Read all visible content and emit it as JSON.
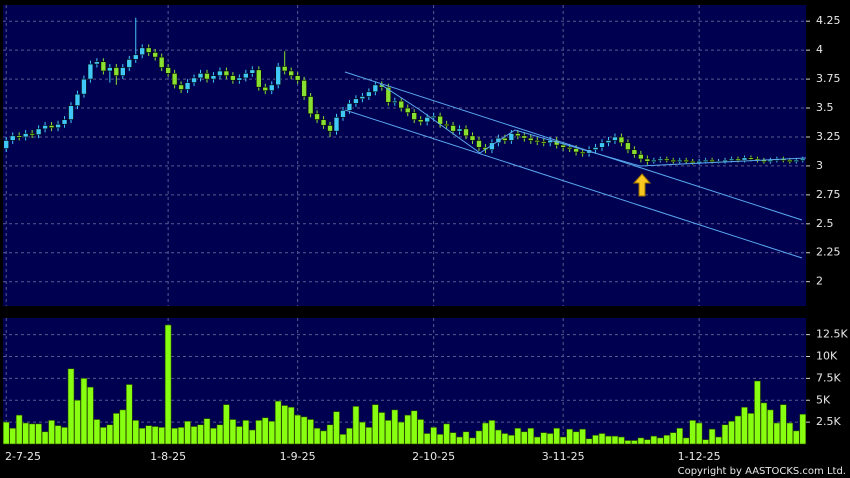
{
  "chart_data": [
    {
      "type": "candlestick",
      "up_color": "#40c8f8",
      "down_color": "#88e030",
      "background": "#000050",
      "ylim": [
        1.79,
        4.39
      ],
      "yticks": [
        2,
        2.25,
        2.5,
        2.75,
        3,
        3.25,
        3.5,
        3.75,
        4,
        4.25
      ],
      "grid": true,
      "open": [
        3.15,
        3.22,
        3.26,
        3.25,
        3.28,
        3.27,
        3.32,
        3.35,
        3.33,
        3.36,
        3.4,
        3.52,
        3.62,
        3.75,
        3.88,
        3.9,
        3.82,
        3.85,
        3.78,
        3.85,
        3.92,
        3.96,
        4.02,
        3.98,
        3.94,
        3.85,
        3.8,
        3.7,
        3.66,
        3.72,
        3.76,
        3.8,
        3.75,
        3.78,
        3.82,
        3.78,
        3.74,
        3.76,
        3.8,
        3.83,
        3.68,
        3.65,
        3.7,
        3.86,
        3.82,
        3.78,
        3.74,
        3.6,
        3.45,
        3.4,
        3.35,
        3.3,
        3.42,
        3.48,
        3.54,
        3.58,
        3.6,
        3.64,
        3.7,
        3.68,
        3.55,
        3.56,
        3.5,
        3.46,
        3.4,
        3.38,
        3.42,
        3.43,
        3.36,
        3.35,
        3.3,
        3.32,
        3.26,
        3.22,
        3.16,
        3.14,
        3.2,
        3.24,
        3.22,
        3.28,
        3.26,
        3.24,
        3.22,
        3.21,
        3.2,
        3.22,
        3.18,
        3.16,
        3.15,
        3.12,
        3.11,
        3.14,
        3.16,
        3.2,
        3.22,
        3.25,
        3.2,
        3.14,
        3.1,
        3.06,
        3.04,
        3.05,
        3.06,
        3.05,
        3.04,
        3.05,
        3.04,
        3.03,
        3.04,
        3.05,
        3.04,
        3.04,
        3.05,
        3.06,
        3.05,
        3.07,
        3.06,
        3.05,
        3.04,
        3.05,
        3.06,
        3.05,
        3.04,
        3.05
      ],
      "high": [
        3.25,
        3.29,
        3.29,
        3.31,
        3.31,
        3.35,
        3.38,
        3.38,
        3.39,
        3.43,
        3.55,
        3.65,
        3.78,
        3.91,
        3.93,
        3.93,
        3.88,
        3.88,
        3.88,
        3.95,
        4.28,
        4.05,
        4.05,
        4.01,
        3.97,
        3.88,
        3.83,
        3.73,
        3.75,
        3.79,
        3.83,
        3.83,
        3.81,
        3.85,
        3.85,
        3.81,
        3.79,
        3.83,
        3.86,
        3.86,
        3.71,
        3.73,
        3.89,
        3.99,
        3.85,
        3.81,
        3.77,
        3.63,
        3.48,
        3.43,
        3.38,
        3.45,
        3.51,
        3.57,
        3.61,
        3.63,
        3.67,
        3.73,
        3.73,
        3.71,
        3.59,
        3.59,
        3.53,
        3.49,
        3.43,
        3.45,
        3.46,
        3.46,
        3.39,
        3.38,
        3.35,
        3.35,
        3.29,
        3.25,
        3.19,
        3.23,
        3.27,
        3.27,
        3.31,
        3.31,
        3.29,
        3.27,
        3.25,
        3.24,
        3.25,
        3.25,
        3.21,
        3.19,
        3.18,
        3.15,
        3.17,
        3.19,
        3.23,
        3.25,
        3.28,
        3.28,
        3.23,
        3.17,
        3.13,
        3.09,
        3.07,
        3.08,
        3.08,
        3.07,
        3.07,
        3.07,
        3.06,
        3.06,
        3.07,
        3.07,
        3.06,
        3.07,
        3.08,
        3.08,
        3.09,
        3.09,
        3.08,
        3.07,
        3.07,
        3.08,
        3.08,
        3.07,
        3.07,
        3.08
      ],
      "low": [
        3.12,
        3.19,
        3.22,
        3.22,
        3.24,
        3.24,
        3.29,
        3.3,
        3.3,
        3.33,
        3.37,
        3.49,
        3.59,
        3.72,
        3.85,
        3.79,
        3.72,
        3.7,
        3.75,
        3.82,
        3.89,
        3.93,
        3.95,
        3.91,
        3.82,
        3.77,
        3.67,
        3.63,
        3.63,
        3.69,
        3.73,
        3.72,
        3.72,
        3.75,
        3.75,
        3.71,
        3.71,
        3.73,
        3.77,
        3.65,
        3.62,
        3.62,
        3.67,
        3.79,
        3.75,
        3.71,
        3.57,
        3.42,
        3.37,
        3.32,
        3.25,
        3.27,
        3.39,
        3.45,
        3.51,
        3.55,
        3.57,
        3.61,
        3.65,
        3.52,
        3.52,
        3.47,
        3.43,
        3.37,
        3.35,
        3.35,
        3.39,
        3.33,
        3.32,
        3.27,
        3.27,
        3.23,
        3.19,
        3.13,
        3.11,
        3.11,
        3.17,
        3.19,
        3.19,
        3.23,
        3.21,
        3.19,
        3.18,
        3.17,
        3.17,
        3.15,
        3.13,
        3.12,
        3.09,
        3.08,
        3.08,
        3.11,
        3.13,
        3.17,
        3.19,
        3.17,
        3.11,
        3.07,
        3.03,
        3.01,
        3.02,
        3.03,
        3.03,
        3.02,
        3.02,
        3.02,
        3.01,
        3.01,
        3.02,
        3.02,
        3.02,
        3.02,
        3.03,
        3.03,
        3.03,
        3.04,
        3.03,
        3.02,
        3.02,
        3.03,
        3.03,
        3.02,
        3.02,
        3.03
      ],
      "close": [
        3.22,
        3.26,
        3.25,
        3.28,
        3.27,
        3.32,
        3.35,
        3.33,
        3.36,
        3.4,
        3.52,
        3.62,
        3.75,
        3.88,
        3.9,
        3.82,
        3.85,
        3.78,
        3.85,
        3.92,
        3.96,
        4.02,
        3.98,
        3.94,
        3.85,
        3.8,
        3.7,
        3.66,
        3.72,
        3.76,
        3.8,
        3.75,
        3.78,
        3.82,
        3.78,
        3.74,
        3.76,
        3.8,
        3.83,
        3.68,
        3.65,
        3.7,
        3.86,
        3.82,
        3.78,
        3.74,
        3.6,
        3.45,
        3.4,
        3.35,
        3.3,
        3.42,
        3.48,
        3.54,
        3.58,
        3.6,
        3.64,
        3.7,
        3.68,
        3.55,
        3.56,
        3.5,
        3.46,
        3.4,
        3.38,
        3.42,
        3.43,
        3.36,
        3.35,
        3.3,
        3.32,
        3.26,
        3.22,
        3.16,
        3.14,
        3.2,
        3.24,
        3.22,
        3.28,
        3.26,
        3.24,
        3.22,
        3.21,
        3.2,
        3.22,
        3.18,
        3.16,
        3.15,
        3.12,
        3.11,
        3.14,
        3.16,
        3.2,
        3.22,
        3.25,
        3.2,
        3.14,
        3.1,
        3.06,
        3.04,
        3.05,
        3.06,
        3.05,
        3.04,
        3.05,
        3.04,
        3.03,
        3.04,
        3.05,
        3.04,
        3.04,
        3.05,
        3.06,
        3.05,
        3.07,
        3.06,
        3.05,
        3.04,
        3.05,
        3.06,
        3.05,
        3.04,
        3.05,
        3.06
      ]
    },
    {
      "type": "bar",
      "color": "#88ff10",
      "background": "#000050",
      "ylim": [
        0,
        14400
      ],
      "yticks": [
        {
          "value": 2500,
          "label": "2.5K"
        },
        {
          "value": 5000,
          "label": "5K"
        },
        {
          "value": 7500,
          "label": "7.5K"
        },
        {
          "value": 10000,
          "label": "10K"
        },
        {
          "value": 12500,
          "label": "12.5K"
        }
      ],
      "grid": true,
      "categories": [
        "2-7-25",
        null,
        null,
        null,
        null,
        null,
        null,
        null,
        null,
        null,
        null,
        null,
        null,
        null,
        null,
        null,
        null,
        null,
        null,
        null,
        null,
        null,
        null,
        null,
        null,
        "1-8-25",
        null,
        null,
        null,
        null,
        null,
        null,
        null,
        null,
        null,
        null,
        null,
        null,
        null,
        null,
        null,
        null,
        null,
        null,
        null,
        "1-9-25",
        null,
        null,
        null,
        null,
        null,
        null,
        null,
        null,
        null,
        null,
        null,
        null,
        null,
        null,
        null,
        null,
        null,
        null,
        null,
        null,
        "2-10-25",
        null,
        null,
        null,
        null,
        null,
        null,
        null,
        null,
        null,
        null,
        null,
        null,
        null,
        null,
        null,
        null,
        null,
        null,
        null,
        "3-11-25",
        null,
        null,
        null,
        null,
        null,
        null,
        null,
        null,
        null,
        null,
        null,
        null,
        null,
        null,
        null,
        null,
        null,
        null,
        null,
        null,
        "1-12-25",
        null,
        null,
        null,
        null,
        null,
        null,
        null,
        null,
        null,
        null,
        null,
        null,
        null,
        null,
        null,
        null
      ],
      "values": [
        2500,
        1800,
        3300,
        2400,
        2300,
        2300,
        1400,
        2700,
        2100,
        1900,
        8600,
        5000,
        7500,
        6500,
        2800,
        1900,
        2200,
        3500,
        3900,
        6800,
        2700,
        1800,
        2100,
        2000,
        1900,
        13600,
        1800,
        1900,
        2600,
        2000,
        2200,
        2900,
        1800,
        2200,
        4500,
        2800,
        2000,
        2700,
        1600,
        2700,
        3000,
        2600,
        4900,
        4400,
        4200,
        3300,
        3100,
        2800,
        1800,
        1500,
        2200,
        3700,
        1100,
        1800,
        4300,
        2500,
        1900,
        4500,
        3600,
        2700,
        3900,
        2500,
        3300,
        3800,
        2800,
        1200,
        1900,
        1100,
        2300,
        1300,
        800,
        1400,
        700,
        1500,
        2400,
        2700,
        1600,
        1200,
        1000,
        1800,
        1400,
        1800,
        800,
        1300,
        1200,
        1800,
        800,
        1700,
        1400,
        1700,
        600,
        1000,
        1200,
        900,
        900,
        800,
        400,
        400,
        700,
        500,
        900,
        700,
        1000,
        1300,
        1800,
        700,
        2700,
        2400,
        500,
        1700,
        800,
        2200,
        2600,
        3200,
        4200,
        3500,
        7200,
        4700,
        3900,
        2400,
        4500,
        2400,
        1500,
        3400
      ]
    }
  ],
  "copyright": "Copyright by AASTOCKS.com Ltd."
}
